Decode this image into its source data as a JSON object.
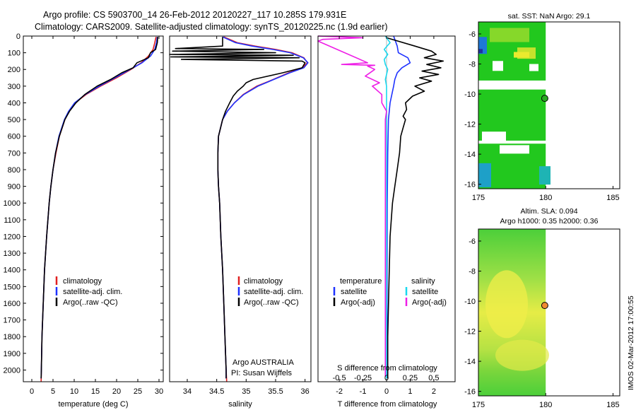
{
  "titles": {
    "line1": "Argo profile: CS 5903700_14 26-Feb-2012 20120227_117 10.285S 179.931E",
    "line2": "Climatology: CARS2009. Satellite-adjusted climatology: synTS_20120225.nc (1.9d earlier)"
  },
  "colors": {
    "climatology": "#e02020",
    "satellite": "#1e32ff",
    "argo": "#000000",
    "satellite_salinity": "#19d8ee",
    "argo_salinity_diff": "#ee1ee6",
    "land": "#ffffff",
    "marker": "#f08a30"
  },
  "chart_data": [
    {
      "type": "line",
      "name": "temperature-profile",
      "xlabel": "temperature (deg C)",
      "ylabel": "",
      "xlim": [
        -2,
        31
      ],
      "ylim": [
        0,
        2070
      ],
      "xticks": [
        0,
        5,
        10,
        15,
        20,
        25,
        30
      ],
      "yticks": [
        0,
        100,
        200,
        300,
        400,
        500,
        600,
        700,
        800,
        900,
        1000,
        1100,
        1200,
        1300,
        1400,
        1500,
        1600,
        1700,
        1800,
        1900,
        2000
      ],
      "legend": [
        "climatology",
        "satellite-adj. clim.",
        "Argo(..raw -QC)"
      ],
      "series": [
        {
          "name": "climatology",
          "color": "#e02020",
          "depth": [
            5,
            40,
            80,
            120,
            160,
            200,
            250,
            300,
            350,
            400,
            450,
            500,
            600,
            700,
            800,
            900,
            1000,
            1200,
            1400,
            1600,
            1800,
            2000,
            2070
          ],
          "values": [
            29.3,
            29.0,
            28.6,
            27.5,
            25.8,
            23.4,
            20.0,
            16.2,
            12.8,
            10.2,
            8.8,
            7.8,
            6.5,
            5.7,
            5.0,
            4.5,
            4.1,
            3.5,
            3.0,
            2.7,
            2.4,
            2.25,
            2.2
          ]
        },
        {
          "name": "satellite-adj. clim.",
          "color": "#1e32ff",
          "depth": [
            5,
            40,
            80,
            120,
            160,
            200,
            250,
            300,
            350,
            400,
            450,
            500,
            600,
            700,
            800,
            900,
            1000,
            1200,
            1400,
            1600,
            1800,
            2000,
            2050
          ],
          "values": [
            29.6,
            29.4,
            29.0,
            28.0,
            26.0,
            23.2,
            19.6,
            15.9,
            12.6,
            10.1,
            8.7,
            7.7,
            6.4,
            5.6,
            5.0,
            4.5,
            4.1,
            3.5,
            3.0,
            2.7,
            2.4,
            2.25,
            2.2
          ]
        },
        {
          "name": "Argo(..raw -QC)",
          "color": "#000000",
          "depth": [
            5,
            40,
            80,
            100,
            130,
            160,
            190,
            220,
            260,
            300,
            350,
            400,
            450,
            500,
            600,
            700,
            800,
            900,
            1000,
            1200,
            1400,
            1600,
            1800,
            2000,
            2050
          ],
          "values": [
            29.7,
            29.6,
            29.2,
            28.0,
            27.5,
            24.8,
            23.9,
            21.2,
            18.6,
            15.4,
            12.5,
            10.4,
            8.9,
            7.8,
            6.5,
            5.6,
            5.0,
            4.5,
            4.1,
            3.5,
            3.0,
            2.7,
            2.4,
            2.25,
            2.2
          ]
        }
      ]
    },
    {
      "type": "line",
      "name": "salinity-profile",
      "xlabel": "salinity",
      "xlim": [
        33.7,
        36.1
      ],
      "ylim": [
        0,
        2070
      ],
      "xticks": [
        34,
        34.5,
        35,
        35.5,
        36
      ],
      "legend": [
        "climatology",
        "satellite-adj. clim.",
        "Argo(..raw -QC)"
      ],
      "annotation": [
        "Argo AUSTRALIA",
        "PI: Susan Wijffels"
      ],
      "series": [
        {
          "name": "climatology",
          "color": "#e02020",
          "depth": [
            5,
            40,
            60,
            80,
            100,
            130,
            160,
            190,
            220,
            260,
            300,
            350,
            400,
            450,
            500,
            600,
            700,
            800,
            900,
            1000,
            1200,
            1400,
            1600,
            1800,
            2000,
            2070
          ],
          "values": [
            34.62,
            34.85,
            35.15,
            35.5,
            35.78,
            35.98,
            36.04,
            35.95,
            35.72,
            35.46,
            35.18,
            34.95,
            34.8,
            34.68,
            34.6,
            34.53,
            34.52,
            34.52,
            34.53,
            34.55,
            34.57,
            34.6,
            34.62,
            34.64,
            34.66,
            34.67
          ]
        },
        {
          "name": "satellite-adj. clim.",
          "color": "#1e32ff",
          "depth": [
            5,
            40,
            60,
            80,
            100,
            130,
            160,
            190,
            220,
            260,
            300,
            350,
            400,
            450,
            500,
            600,
            700,
            800,
            900,
            1000,
            1200,
            1400,
            1600,
            1800,
            2000,
            2050
          ],
          "values": [
            34.6,
            34.82,
            35.1,
            35.45,
            35.75,
            35.97,
            36.05,
            35.98,
            35.74,
            35.47,
            35.2,
            34.96,
            34.8,
            34.68,
            34.6,
            34.53,
            34.52,
            34.52,
            34.53,
            34.55,
            34.57,
            34.6,
            34.62,
            34.64,
            34.66,
            34.66
          ]
        },
        {
          "name": "Argo(..raw -QC)",
          "color": "#000000",
          "depth": [
            5,
            60,
            75,
            80,
            90,
            100,
            110,
            115,
            125,
            130,
            140,
            150,
            160,
            190,
            220,
            260,
            280,
            300,
            330,
            360,
            400,
            450,
            500,
            600,
            700,
            800,
            900,
            1000,
            1200,
            1400,
            1600,
            1800,
            2000,
            2050
          ],
          "values": [
            34.6,
            34.6,
            33.8,
            35.3,
            33.75,
            35.5,
            33.7,
            35.8,
            33.72,
            35.9,
            33.9,
            35.95,
            36.0,
            35.95,
            35.62,
            35.12,
            35.0,
            34.95,
            34.85,
            34.78,
            34.72,
            34.65,
            34.6,
            34.53,
            34.52,
            34.52,
            34.53,
            34.55,
            34.57,
            34.6,
            34.62,
            34.64,
            34.66,
            34.66
          ]
        }
      ]
    },
    {
      "type": "line",
      "name": "difference-from-climatology",
      "xlabel": "T difference from climatology",
      "xlabel_top": "S difference from climatology",
      "xlim": [
        -2.9,
        2.9
      ],
      "ylim": [
        0,
        2070
      ],
      "xticks": [
        -2,
        -1,
        0,
        1,
        2
      ],
      "xticks_s_values": [
        -0.5,
        -0.25,
        0,
        0.25,
        0.5
      ],
      "xticks_s_labels": [
        "-0.5",
        "-0.25",
        "0",
        "0.25",
        "0.5"
      ],
      "legend_temperature": {
        "header": "temperature",
        "items": [
          "satellite",
          "Argo(-adj)"
        ]
      },
      "legend_salinity": {
        "header": "salinity",
        "items": [
          "satellite",
          "Argo(-adj)"
        ]
      },
      "series": [
        {
          "name": "T satellite",
          "color": "#1e32ff",
          "depth": [
            0,
            60,
            100,
            130,
            160,
            190,
            220,
            260,
            300,
            400,
            500,
            700,
            1000,
            1500,
            2000,
            2050
          ],
          "values": [
            0.3,
            0.45,
            0.5,
            0.9,
            1.0,
            0.65,
            0.45,
            0.35,
            0.3,
            0.15,
            0.08,
            0.05,
            0.03,
            0.02,
            0.02,
            0.02
          ]
        },
        {
          "name": "T Argo(-adj)",
          "color": "#000000",
          "depth": [
            10,
            60,
            90,
            110,
            130,
            150,
            170,
            190,
            210,
            230,
            250,
            270,
            300,
            330,
            360,
            400,
            440,
            480,
            500,
            550,
            600,
            700,
            800,
            900,
            1000,
            1200,
            1500,
            1800,
            2000,
            2050
          ],
          "values": [
            0.0,
            1.2,
            1.9,
            2.1,
            1.6,
            2.4,
            1.7,
            2.3,
            1.5,
            2.2,
            1.4,
            1.9,
            1.2,
            1.6,
            1.1,
            0.8,
            0.85,
            0.7,
            0.8,
            0.7,
            0.6,
            0.55,
            0.45,
            0.35,
            0.25,
            0.15,
            0.1,
            0.05,
            0.05,
            0.05
          ]
        },
        {
          "name": "S satellite",
          "color": "#19d8ee",
          "depth": [
            0,
            40,
            80,
            110,
            140,
            170,
            200,
            230,
            260,
            300,
            400,
            600,
            1000,
            1500,
            2000,
            2050
          ],
          "values": [
            -0.05,
            0.15,
            -0.1,
            0.05,
            -0.1,
            -0.05,
            0.05,
            0.0,
            -0.05,
            0.0,
            0.0,
            0.0,
            0.0,
            0.0,
            0.0,
            0.0
          ]
        },
        {
          "name": "S Argo(-adj)",
          "color": "#ee1ee6",
          "depth": [
            0,
            10,
            20,
            30,
            160,
            170,
            175,
            180,
            200,
            240,
            280,
            300,
            350,
            400,
            450,
            500,
            800,
            1200,
            1600,
            2000,
            2040
          ],
          "values": [
            -2.9,
            -1.0,
            -2.7,
            -2.9,
            -0.8,
            -1.9,
            -0.5,
            -0.8,
            -0.5,
            -0.9,
            -0.3,
            -0.6,
            -0.2,
            -0.2,
            0.0,
            -0.05,
            -0.05,
            -0.05,
            -0.05,
            -0.05,
            -0.05
          ]
        }
      ]
    },
    {
      "type": "heatmap",
      "name": "sst-map",
      "title": "sat. SST: NaN Argo: 29.1",
      "xlim": [
        175,
        185.5
      ],
      "ylim": [
        -16.3,
        -5.2
      ],
      "xticks": [
        175,
        180,
        185
      ],
      "yticks": [
        -6,
        -8,
        -10,
        -12,
        -14,
        -16
      ],
      "profile_location": {
        "lon": 179.931,
        "lat": -10.285
      }
    },
    {
      "type": "heatmap",
      "name": "sla-map",
      "title": "Altim. SLA: 0.094",
      "subtitle": "Argo h1000: 0.35 h2000: 0.36",
      "xlim": [
        175,
        185.5
      ],
      "ylim": [
        -16.3,
        -5.2
      ],
      "xticks": [
        175,
        180,
        185
      ],
      "yticks": [
        -6,
        -8,
        -10,
        -12,
        -14,
        -16
      ],
      "profile_location": {
        "lon": 179.931,
        "lat": -10.285
      }
    }
  ],
  "stamp": "IMOS 02-Mar-2012 17:00:55"
}
